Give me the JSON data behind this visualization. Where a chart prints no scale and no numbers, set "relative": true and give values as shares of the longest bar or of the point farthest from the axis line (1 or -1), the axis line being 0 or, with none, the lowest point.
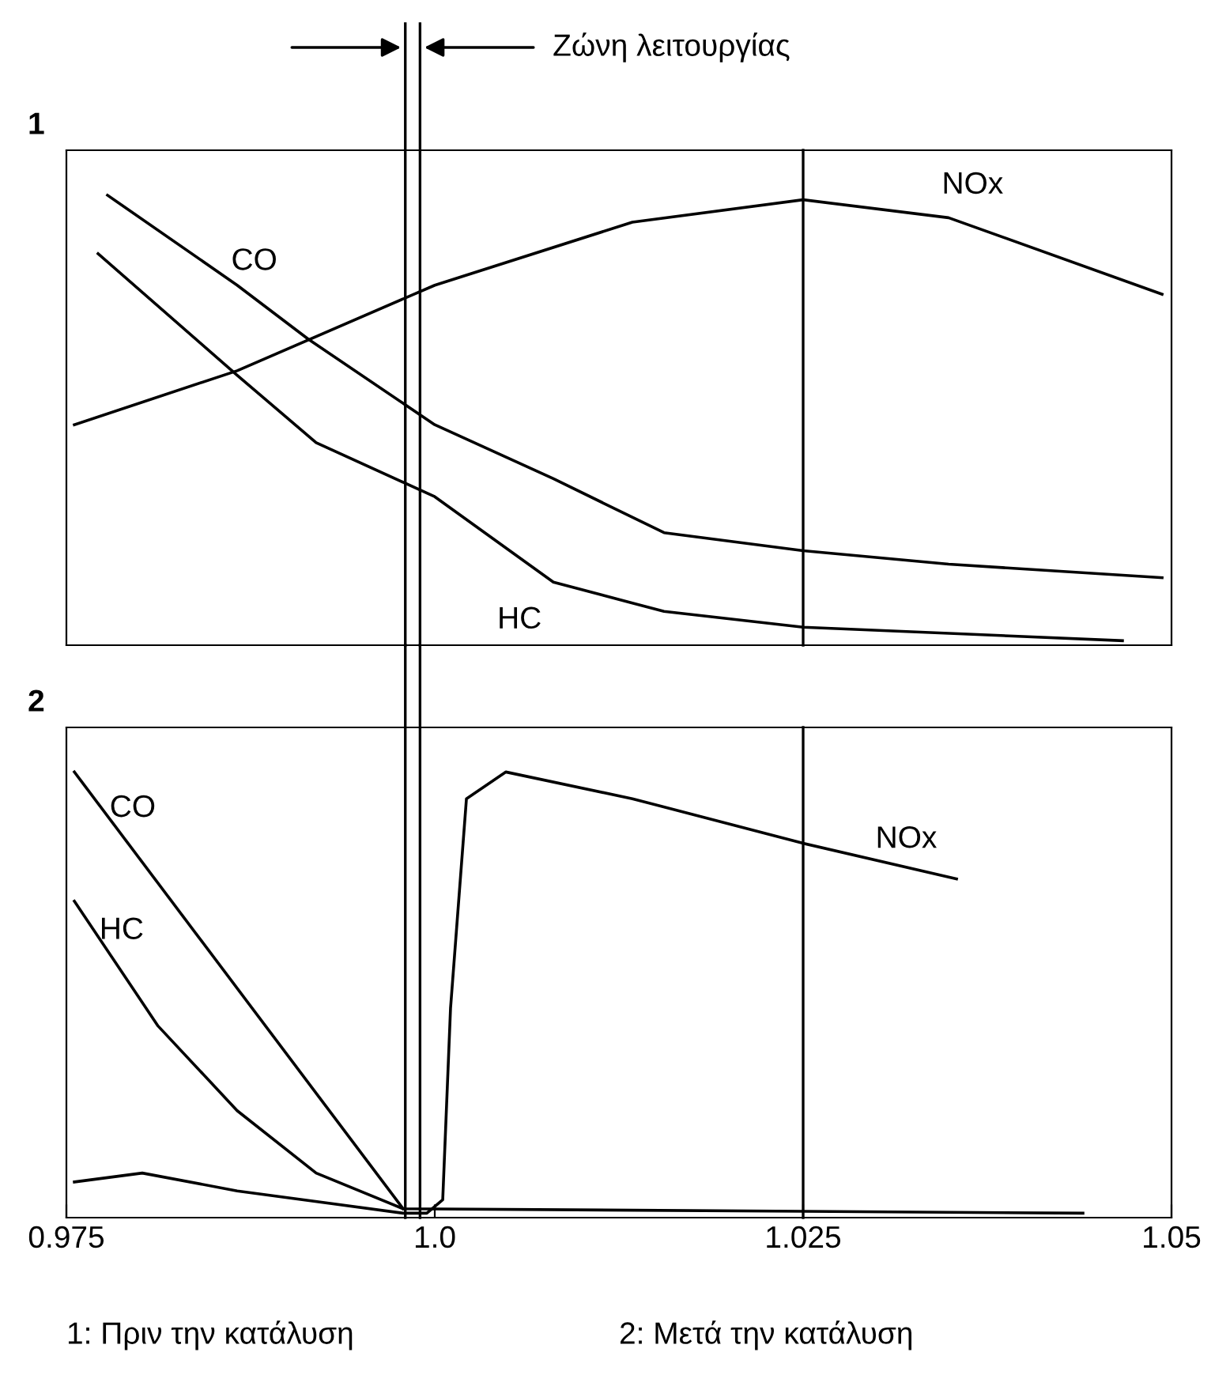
{
  "chart_data": [
    {
      "type": "line",
      "title": "1",
      "relative": true,
      "xlim": [
        0.975,
        1.05
      ],
      "tick_labels": false,
      "legend": false,
      "grid": false,
      "series": [
        {
          "name": "CO",
          "color": "#000000",
          "x": [
            0.97779,
            0.98659,
            0.99142,
            1.0,
            1.00805,
            1.01556,
            1.025,
            1.03487,
            1.04936
          ],
          "values": [
            1.0,
            0.8,
            0.68,
            0.49,
            0.37,
            0.25,
            0.21,
            0.18,
            0.15
          ]
        },
        {
          "name": "HC",
          "color": "#000000",
          "x": [
            0.97715,
            0.98659,
            0.99195,
            1.0,
            1.00805,
            1.01556,
            1.025,
            1.04667
          ],
          "values": [
            0.87,
            0.6,
            0.45,
            0.33,
            0.14,
            0.075,
            0.04,
            0.01
          ]
        },
        {
          "name": "NOx",
          "color": "#000000",
          "x": [
            0.97554,
            0.98659,
            1.0,
            1.01341,
            1.025,
            1.03487,
            1.04936
          ],
          "values": [
            0.49,
            0.61,
            0.8,
            0.94,
            0.99,
            0.95,
            0.78
          ]
        }
      ],
      "ref_lines": [
        {
          "axis": "x",
          "value": 1.025,
          "color": "#000000"
        },
        {
          "axis": "x",
          "value": 0.998,
          "color": "#000000"
        },
        {
          "axis": "x",
          "value": 0.999,
          "color": "#000000",
          "label": "Ζώνη λειτουργίας"
        }
      ]
    },
    {
      "type": "line",
      "title": "2",
      "relative": true,
      "xlim": [
        0.975,
        1.05
      ],
      "xticks": [
        0.975,
        {
          "value": 1.0,
          "label": "1.0"
        },
        1.025,
        1.05
      ],
      "tick_labels": "x",
      "legend": false,
      "grid": false,
      "series": [
        {
          "name": "CO",
          "color": "#000000",
          "x": [
            0.97554,
            0.99785
          ],
          "values": [
            1.0,
            0.02
          ]
        },
        {
          "name": "HC",
          "color": "#000000",
          "x": [
            0.97554,
            0.98122,
            0.98659,
            0.99195,
            0.99785,
            1.04399
          ],
          "values": [
            0.71,
            0.43,
            0.24,
            0.1,
            0.02,
            0.01
          ]
        },
        {
          "name": "NOx",
          "color": "#000000",
          "x": [
            0.97554,
            0.98015,
            0.98659,
            0.99785,
            0.99946,
            1.00054,
            1.00107,
            1.00215,
            1.00483,
            1.01341,
            1.025,
            1.03541
          ],
          "values": [
            0.08,
            0.1,
            0.06,
            0.01,
            0.01,
            0.04,
            0.47,
            0.94,
            1.0,
            0.94,
            0.84,
            0.76
          ]
        }
      ],
      "ref_lines": [
        {
          "axis": "x",
          "value": 1.025,
          "color": "#000000"
        },
        {
          "axis": "x",
          "value": 0.998,
          "color": "#000000"
        },
        {
          "axis": "x",
          "value": 0.999,
          "color": "#000000"
        }
      ],
      "annotations": [
        "1: Πριν την κατάλυση",
        "2: Μετά την κατάλυση"
      ]
    }
  ]
}
